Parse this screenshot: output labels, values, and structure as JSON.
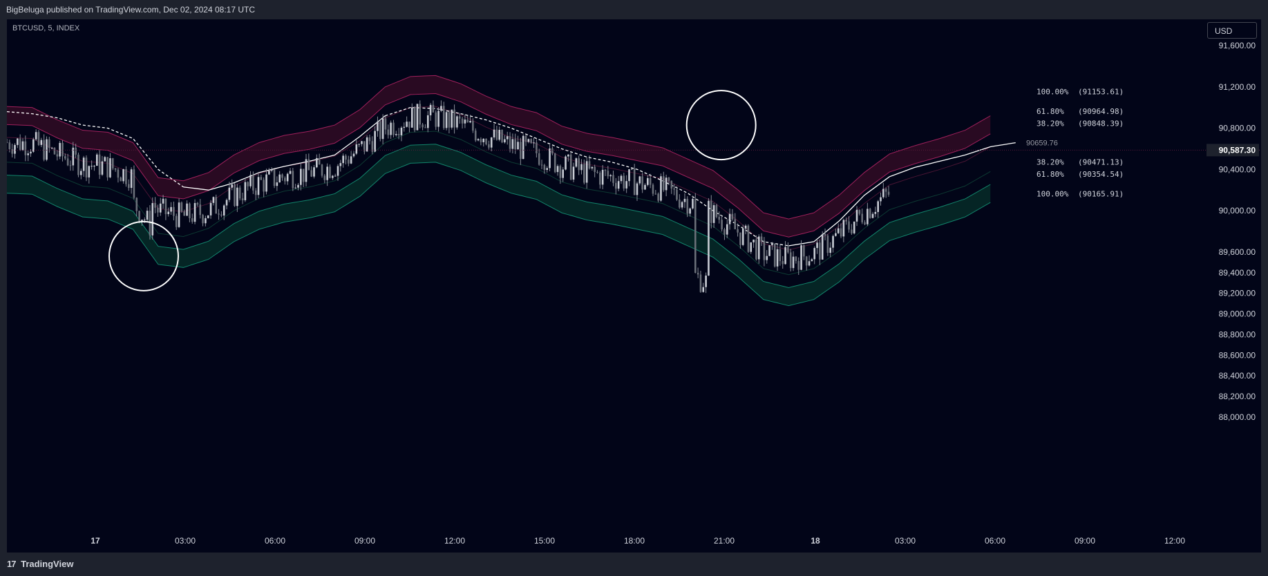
{
  "header": {
    "publisher_text": "BigBeluga published on TradingView.com, Dec 02, 2024 08:17 UTC"
  },
  "symbol_label": "BTCUSD, 5, INDEX",
  "currency_button": "USD",
  "footer": {
    "logo_mark": "17",
    "logo_text": "TradingView"
  },
  "colors": {
    "background": "#020518",
    "upper_band": "#8c1a4f",
    "lower_band": "#0e6b5a",
    "candle": "#b8bcc4",
    "mid_line": "#ffffff"
  },
  "chart_data": {
    "type": "candlestick",
    "ylim": [
      87850,
      91850
    ],
    "x_tick_labels": [
      "17",
      "03:00",
      "06:00",
      "09:00",
      "12:00",
      "15:00",
      "18:00",
      "21:00",
      "18",
      "03:00",
      "06:00",
      "09:00",
      "12:00"
    ],
    "y_tick_labels": [
      "91,600.00",
      "91,200.00",
      "90,800.00",
      "90,400.00",
      "90,000.00",
      "89,600.00",
      "89,400.00",
      "89,200.00",
      "89,000.00",
      "88,800.00",
      "88,600.00",
      "88,400.00",
      "88,200.00",
      "88,000.00"
    ],
    "y_tick_values": [
      91600,
      91200,
      90800,
      90400,
      90000,
      89600,
      89400,
      89200,
      89000,
      88800,
      88600,
      88400,
      88200,
      88000
    ],
    "last_price": "90,587.30",
    "last_price_value": 90587.3,
    "mid_value_label": "90659.76",
    "mid_value": 90659.76,
    "levels": [
      {
        "pct": "100.00%",
        "value": "(91153.61)",
        "price": 91153.61
      },
      {
        "pct": "61.80%",
        "value": "(90964.98)",
        "price": 90964.98
      },
      {
        "pct": "38.20%",
        "value": "(90848.39)",
        "price": 90848.39
      },
      {
        "pct": "38.20%",
        "value": "(90471.13)",
        "price": 90471.13
      },
      {
        "pct": "61.80%",
        "value": "(90354.54)",
        "price": 90354.54
      },
      {
        "pct": "100.00%",
        "value": "(90165.91)",
        "price": 90165.91
      }
    ],
    "basis": [
      [
        0,
        90590
      ],
      [
        40,
        90580
      ],
      [
        80,
        90460
      ],
      [
        120,
        90360
      ],
      [
        160,
        90340
      ],
      [
        200,
        90240
      ],
      [
        240,
        89900
      ],
      [
        280,
        89870
      ],
      [
        320,
        89950
      ],
      [
        360,
        90120
      ],
      [
        400,
        90240
      ],
      [
        440,
        90310
      ],
      [
        480,
        90350
      ],
      [
        520,
        90410
      ],
      [
        560,
        90560
      ],
      [
        600,
        90780
      ],
      [
        640,
        90880
      ],
      [
        680,
        90890
      ],
      [
        720,
        90810
      ],
      [
        760,
        90690
      ],
      [
        800,
        90590
      ],
      [
        840,
        90530
      ],
      [
        880,
        90400
      ],
      [
        920,
        90330
      ],
      [
        960,
        90290
      ],
      [
        1000,
        90240
      ],
      [
        1040,
        90190
      ],
      [
        1080,
        90080
      ],
      [
        1120,
        89970
      ],
      [
        1160,
        89780
      ],
      [
        1200,
        89560
      ],
      [
        1240,
        89500
      ],
      [
        1280,
        89560
      ],
      [
        1320,
        89730
      ],
      [
        1360,
        89950
      ],
      [
        1400,
        90130
      ],
      [
        1440,
        90210
      ],
      [
        1480,
        90280
      ],
      [
        1520,
        90360
      ],
      [
        1560,
        90500
      ]
    ],
    "midline": [
      [
        0,
        90960
      ],
      [
        40,
        90940
      ],
      [
        80,
        90900
      ],
      [
        120,
        90830
      ],
      [
        160,
        90800
      ],
      [
        200,
        90700
      ],
      [
        240,
        90400
      ],
      [
        280,
        90230
      ],
      [
        320,
        90200
      ],
      [
        360,
        90270
      ],
      [
        400,
        90370
      ],
      [
        440,
        90430
      ],
      [
        480,
        90480
      ],
      [
        520,
        90540
      ],
      [
        560,
        90720
      ],
      [
        600,
        90920
      ],
      [
        640,
        91000
      ],
      [
        680,
        90990
      ],
      [
        720,
        90940
      ],
      [
        760,
        90880
      ],
      [
        800,
        90800
      ],
      [
        840,
        90700
      ],
      [
        880,
        90600
      ],
      [
        920,
        90520
      ],
      [
        960,
        90470
      ],
      [
        1000,
        90400
      ],
      [
        1040,
        90290
      ],
      [
        1080,
        90170
      ],
      [
        1120,
        90000
      ],
      [
        1160,
        89860
      ],
      [
        1200,
        89700
      ],
      [
        1240,
        89660
      ],
      [
        1280,
        89700
      ],
      [
        1320,
        89900
      ],
      [
        1360,
        90150
      ],
      [
        1400,
        90330
      ],
      [
        1440,
        90420
      ],
      [
        1480,
        90480
      ],
      [
        1520,
        90540
      ],
      [
        1560,
        90620
      ],
      [
        1600,
        90659
      ]
    ],
    "half_width": 420,
    "circle_marks": [
      [
        217,
        89560
      ],
      [
        1133,
        90830
      ]
    ]
  }
}
